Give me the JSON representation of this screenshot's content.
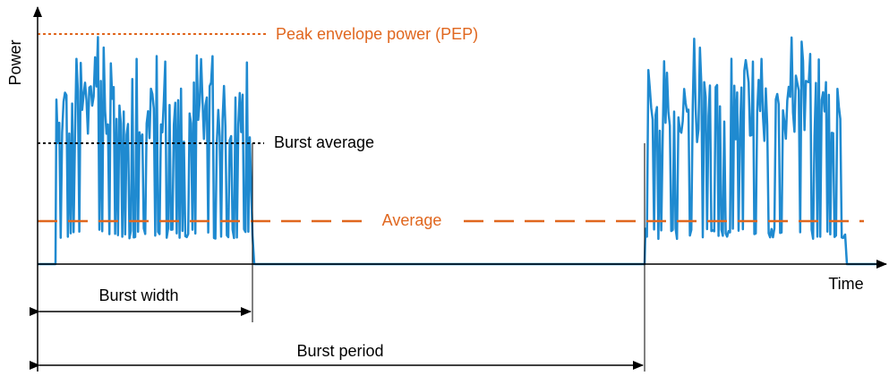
{
  "axes": {
    "y_label": "Power",
    "x_label": "Time"
  },
  "levels": {
    "pep": "Peak envelope power (PEP)",
    "burst_average": "Burst average",
    "average": "Average"
  },
  "dimensions": {
    "burst_width": "Burst width",
    "burst_period": "Burst period"
  }
}
